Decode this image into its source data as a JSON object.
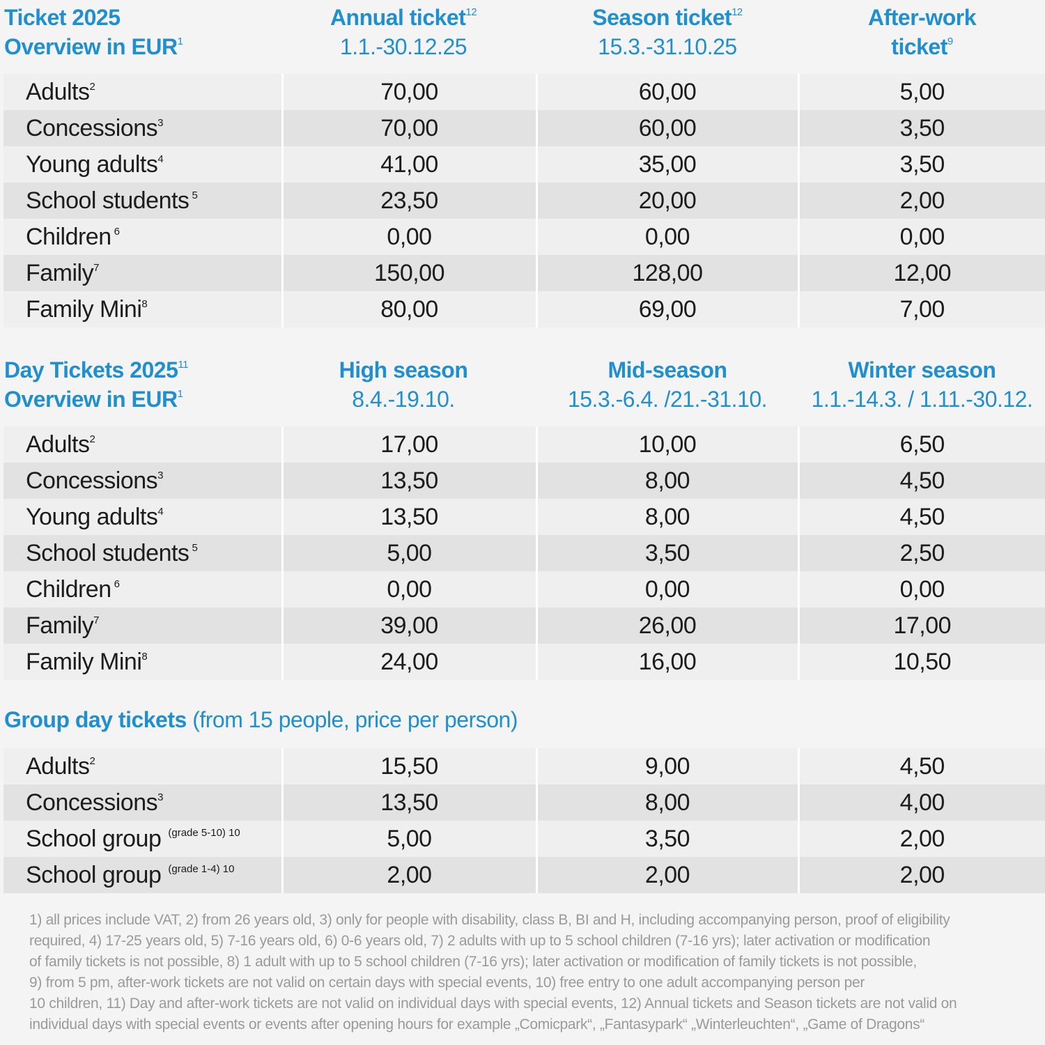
{
  "annual": {
    "title": "Ticket 2025",
    "subtitle": "Overview in EUR",
    "subtitle_sup": "1",
    "columns": [
      {
        "title": "Annual ticket",
        "sup": "12",
        "dates": "1.1.-30.12.25"
      },
      {
        "title": "Season ticket",
        "sup": "12",
        "dates": "15.3.-31.10.25"
      },
      {
        "title_line1": "After-work",
        "title_line2": "ticket",
        "sup": "9"
      }
    ],
    "rows": [
      {
        "label": "Adults",
        "sup": "2",
        "values": [
          "70,00",
          "60,00",
          "5,00"
        ]
      },
      {
        "label": "Concessions",
        "sup": "3",
        "values": [
          "70,00",
          "60,00",
          "3,50"
        ]
      },
      {
        "label": "Young adults",
        "sup": "4",
        "values": [
          "41,00",
          "35,00",
          "3,50"
        ]
      },
      {
        "label": "School students",
        "sup": "5",
        "values": [
          "23,50",
          "20,00",
          "2,00"
        ]
      },
      {
        "label": "Children",
        "sup": "6",
        "values": [
          "0,00",
          "0,00",
          "0,00"
        ]
      },
      {
        "label": "Family",
        "sup": "7",
        "values": [
          "150,00",
          "128,00",
          "12,00"
        ]
      },
      {
        "label": "Family Mini",
        "sup": "8",
        "values": [
          "80,00",
          "69,00",
          "7,00"
        ]
      }
    ]
  },
  "day": {
    "title": "Day Tickets 2025",
    "title_sup": "11",
    "subtitle": "Overview in EUR",
    "subtitle_sup": "1",
    "columns": [
      {
        "title": "High season",
        "dates": "8.4.-19.10."
      },
      {
        "title": "Mid-season",
        "dates": "15.3.-6.4. /21.-31.10."
      },
      {
        "title": "Winter season",
        "dates": "1.1.-14.3. / 1.11.-30.12."
      }
    ],
    "rows": [
      {
        "label": "Adults",
        "sup": "2",
        "values": [
          "17,00",
          "10,00",
          "6,50"
        ]
      },
      {
        "label": "Concessions",
        "sup": "3",
        "values": [
          "13,50",
          "8,00",
          "4,50"
        ]
      },
      {
        "label": "Young adults",
        "sup": "4",
        "values": [
          "13,50",
          "8,00",
          "4,50"
        ]
      },
      {
        "label": "School students",
        "sup": "5",
        "values": [
          "5,00",
          "3,50",
          "2,50"
        ]
      },
      {
        "label": "Children",
        "sup": "6",
        "values": [
          "0,00",
          "0,00",
          "0,00"
        ]
      },
      {
        "label": "Family",
        "sup": "7",
        "values": [
          "39,00",
          "26,00",
          "17,00"
        ]
      },
      {
        "label": "Family Mini",
        "sup": "8",
        "values": [
          "24,00",
          "16,00",
          "10,50"
        ]
      }
    ]
  },
  "group": {
    "title_bold": "Group day tickets",
    "title_rest": "(from 15 people, price per person)",
    "rows": [
      {
        "label": "Adults",
        "sup": "2",
        "values": [
          "15,50",
          "9,00",
          "4,50"
        ]
      },
      {
        "label": "Concessions",
        "sup": "3",
        "values": [
          "13,50",
          "8,00",
          "4,00"
        ]
      },
      {
        "label": "School group",
        "sup": "(grade 5-10) 10",
        "values": [
          "5,00",
          "3,50",
          "2,00"
        ]
      },
      {
        "label": "School group",
        "sup": "(grade 1-4) 10",
        "values": [
          "2,00",
          "2,00",
          "2,00"
        ]
      }
    ]
  },
  "footnotes": [
    "1) all prices include VAT, 2) from 26 years old, 3) only for people with disability, class B, BI and H, including accompanying person, proof of eligibility",
    "required, 4) 17-25 years old, 5) 7-16 years old, 6) 0-6 years old, 7) 2 adults with up to 5 school children (7-16 yrs); later activation or modification",
    "of family tickets is not possible, 8) 1 adult with up to 5 school children (7-16 yrs); later activation or modification of family tickets is not possible,",
    "9) from 5 pm, after-work tickets are not valid on certain days with special events, 10) free entry to one adult accompanying person per",
    "10 children, 11) Day and after-work tickets are not valid on individual days with special events,  12) Annual tickets and Season tickets are not valid on",
    "individual days with special events or events after opening hours for example „Comicpark“, „Fantasypark“ „Winterleuchten“, „Game of Dragons“"
  ]
}
